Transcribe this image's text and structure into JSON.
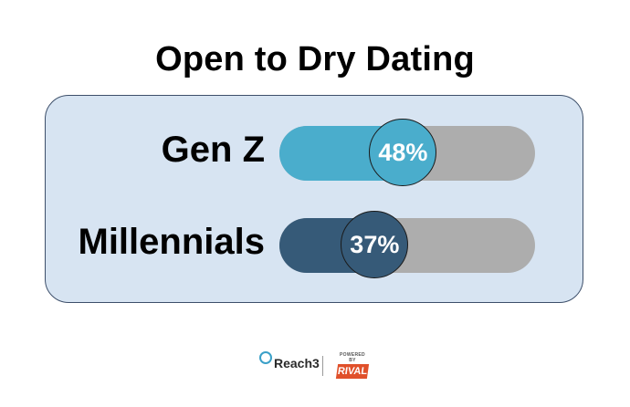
{
  "chart_data": {
    "type": "bar",
    "title": "Open to Dry Dating",
    "categories": [
      "Gen Z",
      "Millennials"
    ],
    "values": [
      48,
      37
    ],
    "value_labels": [
      "48%",
      "37%"
    ],
    "ylim": [
      0,
      100
    ],
    "colors": [
      "#4aadcc",
      "#365a78"
    ],
    "track_color": "#adadad",
    "panel_color": "#d7e4f2"
  },
  "footer": {
    "brand_left": "Reach3",
    "powered_by": "POWERED BY",
    "brand_right": "RIVAL"
  }
}
